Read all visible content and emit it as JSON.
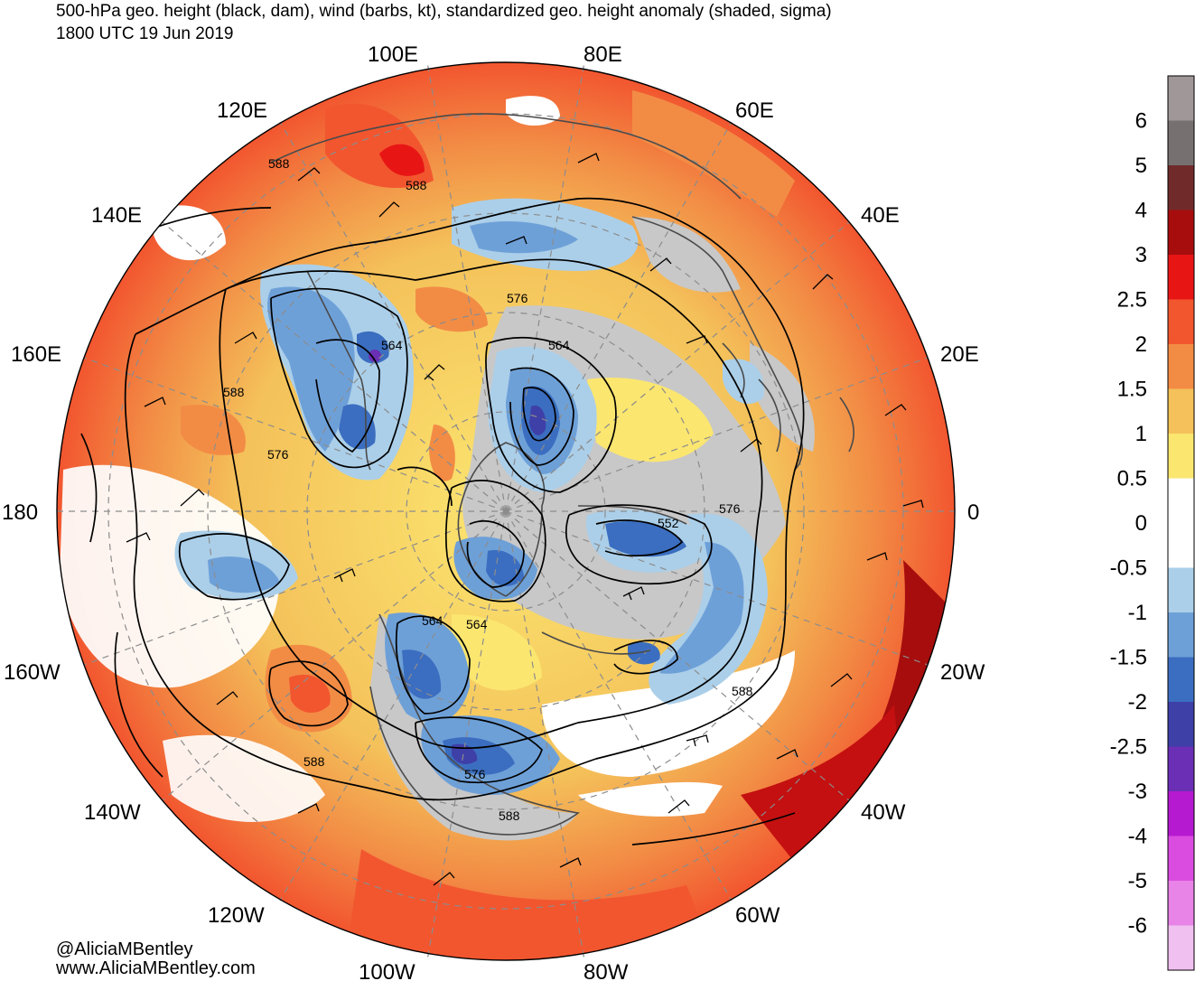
{
  "header": {
    "title": "500-hPa geo. height (black, dam), wind (barbs, kt), standardized geo. height anomaly (shaded, sigma)",
    "valid_time": "1800 UTC 19 Jun 2019"
  },
  "longitude_labels": [
    "100E",
    "80E",
    "120E",
    "60E",
    "140E",
    "40E",
    "160E",
    "20E",
    "180",
    "0",
    "160W",
    "20W",
    "140W",
    "40W",
    "120W",
    "60W",
    "100W",
    "80W"
  ],
  "contour_labels": [
    "588",
    "588",
    "576",
    "564",
    "588",
    "576",
    "564",
    "552",
    "576",
    "564",
    "564",
    "588",
    "588",
    "576",
    "588"
  ],
  "colorbar": {
    "labels": [
      "6",
      "5",
      "4",
      "3",
      "2.5",
      "2",
      "1.5",
      "1",
      "0.5",
      "0",
      "-0.5",
      "-1",
      "-1.5",
      "-2",
      "-2.5",
      "-3",
      "-4",
      "-5",
      "-6"
    ],
    "colors": [
      "#a09898",
      "#767070",
      "#712a2a",
      "#a70d0d",
      "#e81515",
      "#f2562f",
      "#f28c45",
      "#f4c15a",
      "#fbe670",
      "#ffffff",
      "#ffffff",
      "#abcfe9",
      "#6ea0d8",
      "#3b6ec0",
      "#3f3fa8",
      "#6b2fb5",
      "#b51ad0",
      "#da4ce0",
      "#e883e8",
      "#f0c0f0"
    ]
  },
  "credits": {
    "handle": "@AliciaMBentley",
    "site": "www.AliciaMBentley.com"
  }
}
